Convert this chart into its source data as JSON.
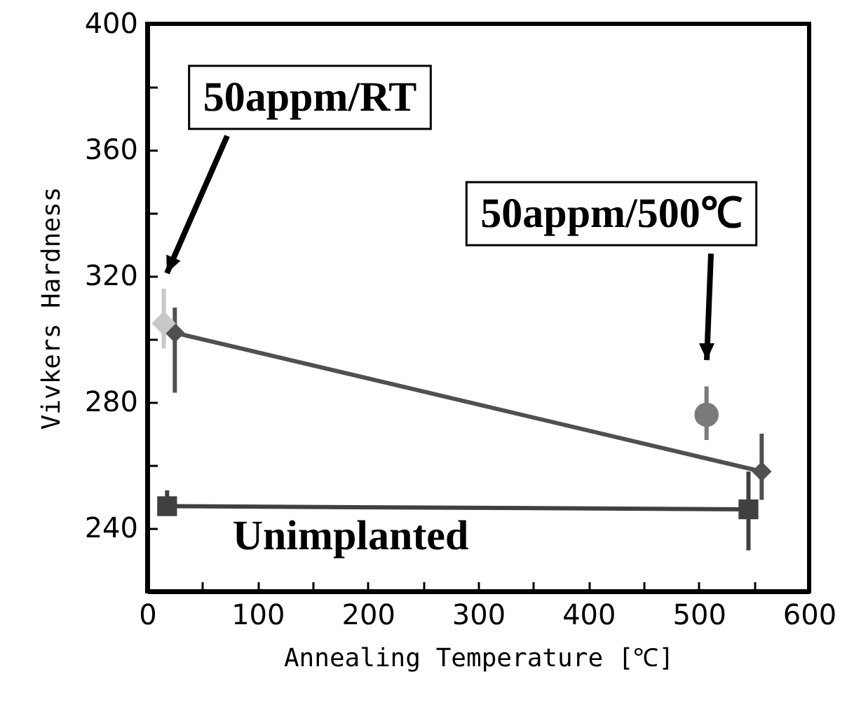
{
  "chart_data": {
    "type": "line",
    "xlabel": "Annealing Temperature  [℃]",
    "ylabel": "Vivkers Hardness",
    "xlim": [
      0,
      600
    ],
    "ylim": [
      220,
      400
    ],
    "xticks": [
      0,
      {
        "value": 50,
        "label": null
      },
      100,
      {
        "value": 150,
        "label": null
      },
      200,
      {
        "value": 250,
        "label": null
      },
      300,
      {
        "value": 350,
        "label": null
      },
      400,
      {
        "value": 450,
        "label": null
      },
      500,
      {
        "value": 550,
        "label": null
      },
      600
    ],
    "yticks": [
      {
        "value": 220,
        "label": null
      },
      240,
      {
        "value": 260,
        "label": null
      },
      280,
      {
        "value": 300,
        "label": null
      },
      320,
      {
        "value": 340,
        "label": null
      },
      360,
      {
        "value": 380,
        "label": null
      },
      400
    ],
    "grid": false,
    "line_style": "solid",
    "series": [
      {
        "marker": "diamond",
        "color": "#505050",
        "x": [
          25,
          557
        ],
        "values": [
          302,
          258
        ],
        "errors": [
          [
            283,
            310
          ],
          [
            249,
            270
          ]
        ]
      },
      {
        "marker": "square",
        "color": "#404040",
        "x": [
          18,
          545
        ],
        "values": [
          247,
          246
        ],
        "errors": [
          [
            244,
            252
          ],
          [
            233,
            258
          ]
        ]
      },
      {
        "type": "scatter",
        "marker": "diamond",
        "color": "#c8c8c8",
        "x": [
          15
        ],
        "values": [
          305
        ],
        "errors": [
          [
            297,
            316
          ]
        ]
      },
      {
        "type": "scatter",
        "marker": "circle",
        "color": "#7a7a7a",
        "x": [
          507
        ],
        "values": [
          276
        ],
        "errors": [
          [
            268,
            285
          ]
        ]
      }
    ],
    "annotations": [
      "50appm/RT",
      "50appm/500℃",
      "Unimplanted"
    ]
  }
}
